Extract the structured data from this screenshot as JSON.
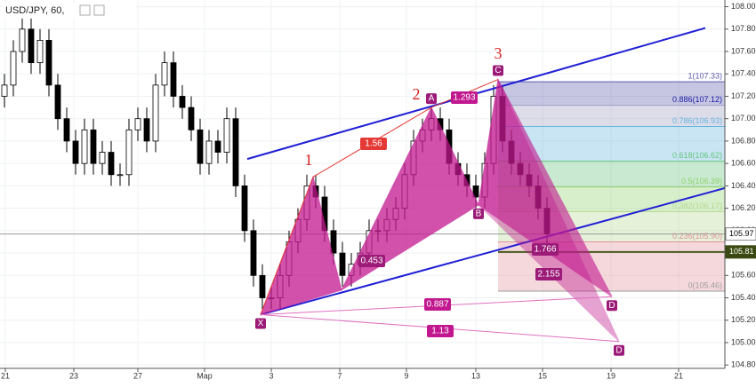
{
  "chart_data": {
    "type": "candlestick",
    "title": "USD/JPY, 60,",
    "xlim": [
      0,
      815
    ],
    "ylim": [
      104.77,
      108.06
    ],
    "xticks": [
      {
        "value": 6,
        "label": "21"
      },
      {
        "value": 83,
        "label": "23"
      },
      {
        "value": 155,
        "label": "27"
      },
      {
        "value": 230,
        "label": "Мар"
      },
      {
        "value": 305,
        "label": "3"
      },
      {
        "value": 382,
        "label": "7"
      },
      {
        "value": 457,
        "label": "9"
      },
      {
        "value": 535,
        "label": "13"
      },
      {
        "value": 610,
        "label": "15"
      },
      {
        "value": 687,
        "label": "19"
      },
      {
        "value": 763,
        "label": "21"
      }
    ],
    "yticks": [
      {
        "value": 104.8,
        "label": "104.80"
      },
      {
        "value": 105.0,
        "label": "105.00"
      },
      {
        "value": 105.2,
        "label": "105.20"
      },
      {
        "value": 105.4,
        "label": "105.40"
      },
      {
        "value": 105.6,
        "label": "105.60"
      },
      {
        "value": 105.8,
        "label": "105.80"
      },
      {
        "value": 106.0,
        "label": "106.00"
      },
      {
        "value": 106.2,
        "label": "106.20"
      },
      {
        "value": 106.4,
        "label": "106.40"
      },
      {
        "value": 106.6,
        "label": "106.60"
      },
      {
        "value": 106.8,
        "label": "106.80"
      },
      {
        "value": 107.0,
        "label": "107.00"
      },
      {
        "value": 107.2,
        "label": "107.20"
      },
      {
        "value": 107.4,
        "label": "107.40"
      },
      {
        "value": 107.6,
        "label": "107.60"
      },
      {
        "value": 107.8,
        "label": "107.80"
      },
      {
        "value": 108.0,
        "label": "108.00"
      }
    ],
    "candles": [
      [
        5,
        107.2,
        107.4,
        107.1,
        107.3
      ],
      [
        15,
        107.3,
        107.7,
        107.2,
        107.6
      ],
      [
        25,
        107.6,
        107.9,
        107.5,
        107.8
      ],
      [
        35,
        107.8,
        107.9,
        107.4,
        107.5
      ],
      [
        45,
        107.5,
        107.8,
        107.4,
        107.7
      ],
      [
        55,
        107.7,
        107.8,
        107.2,
        107.3
      ],
      [
        65,
        107.3,
        107.4,
        106.9,
        107.0
      ],
      [
        75,
        107.0,
        107.1,
        106.7,
        106.8
      ],
      [
        85,
        106.8,
        106.9,
        106.5,
        106.6
      ],
      [
        95,
        106.6,
        107.0,
        106.5,
        106.9
      ],
      [
        105,
        106.9,
        107.0,
        106.5,
        106.6
      ],
      [
        115,
        106.6,
        106.8,
        106.5,
        106.7
      ],
      [
        125,
        106.7,
        106.8,
        106.4,
        106.5
      ],
      [
        135,
        106.5,
        106.6,
        106.4,
        106.5
      ],
      [
        145,
        106.5,
        107.0,
        106.4,
        106.9
      ],
      [
        155,
        106.9,
        107.1,
        106.8,
        107.0
      ],
      [
        165,
        107.0,
        107.1,
        106.7,
        106.8
      ],
      [
        175,
        106.8,
        107.4,
        106.7,
        107.3
      ],
      [
        185,
        107.3,
        107.6,
        107.2,
        107.5
      ],
      [
        195,
        107.5,
        107.6,
        107.1,
        107.2
      ],
      [
        205,
        107.2,
        107.3,
        107.0,
        107.1
      ],
      [
        215,
        107.1,
        107.2,
        106.8,
        106.9
      ],
      [
        225,
        106.9,
        107.0,
        106.5,
        106.6
      ],
      [
        235,
        106.6,
        106.9,
        106.5,
        106.8
      ],
      [
        245,
        106.8,
        106.9,
        106.6,
        106.7
      ],
      [
        255,
        106.7,
        107.1,
        106.6,
        107.0
      ],
      [
        265,
        107.0,
        107.1,
        106.3,
        106.4
      ],
      [
        275,
        106.4,
        106.5,
        105.9,
        106.0
      ],
      [
        285,
        106.0,
        106.1,
        105.5,
        105.6
      ],
      [
        295,
        105.6,
        105.7,
        105.3,
        105.4
      ],
      [
        305,
        105.4,
        105.5,
        105.3,
        105.4
      ],
      [
        315,
        105.4,
        105.7,
        105.3,
        105.6
      ],
      [
        325,
        105.6,
        106.0,
        105.5,
        105.9
      ],
      [
        335,
        105.9,
        106.2,
        105.8,
        106.1
      ],
      [
        345,
        106.1,
        106.5,
        106.0,
        106.4
      ],
      [
        355,
        106.4,
        106.5,
        106.2,
        106.3
      ],
      [
        365,
        106.3,
        106.4,
        105.9,
        106.0
      ],
      [
        375,
        106.0,
        106.1,
        105.7,
        105.8
      ],
      [
        385,
        105.8,
        105.9,
        105.5,
        105.6
      ],
      [
        395,
        105.6,
        105.8,
        105.5,
        105.7
      ],
      [
        405,
        105.7,
        105.9,
        105.6,
        105.8
      ],
      [
        415,
        105.8,
        106.1,
        105.7,
        106.0
      ],
      [
        425,
        106.0,
        106.1,
        105.9,
        106.0
      ],
      [
        435,
        106.0,
        106.2,
        105.9,
        106.1
      ],
      [
        445,
        106.1,
        106.3,
        106.0,
        106.2
      ],
      [
        455,
        106.2,
        106.6,
        106.1,
        106.5
      ],
      [
        465,
        106.5,
        106.9,
        106.4,
        106.8
      ],
      [
        475,
        106.8,
        107.0,
        106.7,
        106.9
      ],
      [
        485,
        106.9,
        107.1,
        106.8,
        107.0
      ],
      [
        495,
        107.0,
        107.1,
        106.8,
        106.9
      ],
      [
        505,
        106.9,
        107.0,
        106.5,
        106.6
      ],
      [
        515,
        106.6,
        106.7,
        106.4,
        106.5
      ],
      [
        525,
        106.5,
        106.6,
        106.3,
        106.4
      ],
      [
        535,
        106.4,
        106.5,
        106.2,
        106.3
      ],
      [
        545,
        106.3,
        106.7,
        106.2,
        106.6
      ],
      [
        555,
        106.6,
        107.3,
        106.5,
        107.2
      ],
      [
        565,
        107.2,
        107.3,
        106.7,
        106.8
      ],
      [
        575,
        106.8,
        106.9,
        106.5,
        106.6
      ],
      [
        585,
        106.6,
        106.7,
        106.4,
        106.5
      ],
      [
        595,
        106.5,
        106.6,
        106.3,
        106.4
      ],
      [
        605,
        106.4,
        106.5,
        106.1,
        106.2
      ],
      [
        615,
        106.2,
        106.3,
        105.87,
        105.97
      ]
    ],
    "candle_colors": {
      "up": "#ffffff",
      "down": "#000000"
    },
    "points": [
      {
        "label": "X",
        "x": 293,
        "price": 105.25
      },
      {
        "x": 352,
        "price": 106.48
      },
      {
        "x": 384,
        "price": 105.47
      },
      {
        "label": "A",
        "x": 485,
        "price": 107.1
      },
      {
        "label": "B",
        "x": 538,
        "price": 106.23
      },
      {
        "label": "C",
        "x": 560,
        "price": 107.35
      },
      {
        "label": "D",
        "x": 688,
        "price": 105.41
      },
      {
        "label": "D",
        "x": 696,
        "price": 105.01
      }
    ],
    "pattern_color": "#c2188f",
    "ratio_labels": [
      1.56,
      1.293,
      0.453,
      0.887,
      1.13,
      1.766,
      2.155
    ],
    "annotations": [
      "1",
      "2",
      "3"
    ],
    "trendlines": [
      {
        "x": [
          278,
          793
        ],
        "price": [
          106.64,
          107.81
        ]
      },
      {
        "x": [
          293,
          815
        ],
        "price": [
          105.25,
          106.38
        ]
      }
    ],
    "trend_color": "#1f1fd6",
    "fib": {
      "x": [
        560,
        815
      ],
      "levels": [
        {
          "label": "1(107.33)",
          "value": 107.33
        },
        {
          "label": "0.886(107.12)",
          "value": 107.12
        },
        {
          "label": "0.786(106.93)",
          "value": 106.93
        },
        {
          "label": "0.618(106.62)",
          "value": 106.62
        },
        {
          "label": "0.5(106.39)",
          "value": 106.39
        },
        {
          "label": "0.382(106.17)",
          "value": 106.17
        },
        {
          "label": "0.236(105.90)",
          "value": 105.9
        },
        {
          "label": "0(105.46)",
          "value": 105.46
        }
      ],
      "colors": [
        "#5c5cb0",
        "#9e9ec4",
        "#64b5e0",
        "#63c47a",
        "#8fd06a",
        "#b4d890",
        "#e0909c",
        "#9e9e9e"
      ]
    },
    "last_price": 105.97,
    "marker_price": 105.81
  }
}
